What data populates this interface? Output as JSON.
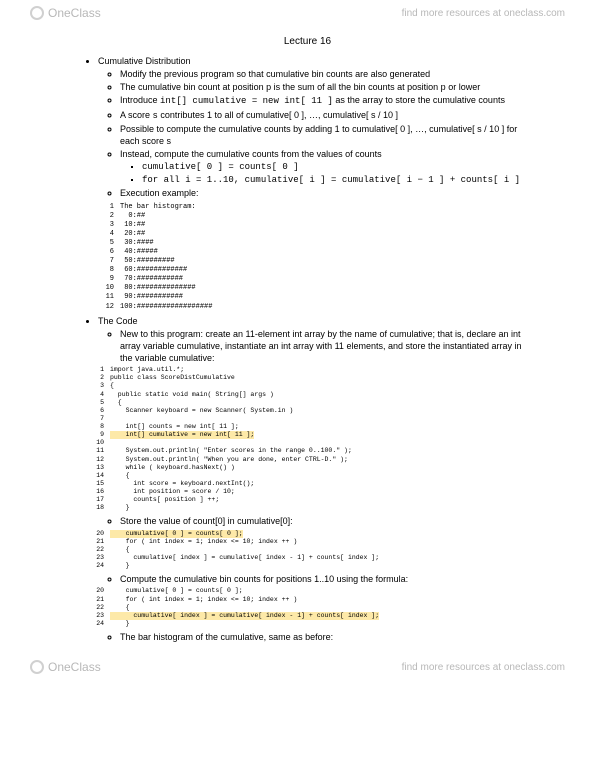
{
  "header": {
    "brand": "OneClass",
    "link_text": "find more resources at oneclass.com"
  },
  "title": "Lecture 16",
  "section1": {
    "heading": "Cumulative Distribution",
    "b1": "Modify the previous program so that cumulative bin counts are also generated",
    "b2": "The cumulative bin count at position p is the sum of all the bin counts at position p or lower",
    "b3_pre": "Introduce ",
    "b3_code": "int[] cumulative = new int[ 11 ]",
    "b3_post": " as the array to store the cumulative counts",
    "b4_pre": "A score ",
    "b4_code": "s",
    "b4_post": " contributes 1 to all of cumulative[ 0 ], …, cumulative[ s / 10 ]",
    "b5": "Possible to compute the cumulative counts by adding 1 to cumulative[ 0 ], …, cumulative[ s / 10 ] for each score s",
    "b6": "Instead, compute the cumulative counts from the values of counts",
    "b6a": "cumulative[ 0 ] = counts[ 0 ]",
    "b6b": "for all i = 1..10, cumulative[ i ] = cumulative[ i − 1 ] + counts[ i ]",
    "b7": "Execution example:"
  },
  "histogram_lines": [
    "The bar histogram:",
    "  0:##",
    " 10:##",
    " 20:##",
    " 30:####",
    " 40:#####",
    " 50:#########",
    " 60:############",
    " 70:###########",
    " 80:##############",
    " 90:###########",
    "100:##################"
  ],
  "section2": {
    "heading": "The Code",
    "b1": "New to this program: create an 11-element int array by the name of cumulative; that is, declare an int array variable cumulative, instantiate an int array with 11 elements, and store the instantiated array in the variable cumulative:",
    "b2": "Store the value of count[0] in cumulative[0]:",
    "b3": "Compute the cumulative bin counts for positions 1..10 using the formula:",
    "b4": "The bar histogram of the cumulative, same as before:"
  },
  "code1": {
    "l1": "import java.util.*;",
    "l2": "public class ScoreDistCumulative",
    "l3": "{",
    "l4": "  public static void main( String[] args )",
    "l5": "  {",
    "l6": "    Scanner keyboard = new Scanner( System.in )",
    "l7": "",
    "l8": "    int[] counts = new int[ 11 ];",
    "l9": "    int[] cumulative = new int[ 11 ];",
    "l10": "",
    "l11": "    System.out.println( \"Enter scores in the range 0..100.\" );",
    "l12": "    System.out.println( \"When you are done, enter CTRL-D.\" );",
    "l13": "    while ( keyboard.hasNext() )",
    "l14": "    {",
    "l15": "      int score = keyboard.nextInt();",
    "l16": "      int position = score / 10;",
    "l17": "      counts[ position ] ++;",
    "l18": "    }"
  },
  "code2": {
    "l20": "    cumulative[ 0 ] = counts[ 0 ];",
    "l21": "    for ( int index = 1; index <= 10; index ++ )",
    "l22": "    {",
    "l23": "      cumulative[ index ] = cumulative[ index - 1] + counts[ index ];",
    "l24": "    }"
  },
  "colors": {
    "highlight": "#fde9a8",
    "watermark": "#b8b8b8",
    "keyword": "#0000cc",
    "string": "#008800"
  }
}
